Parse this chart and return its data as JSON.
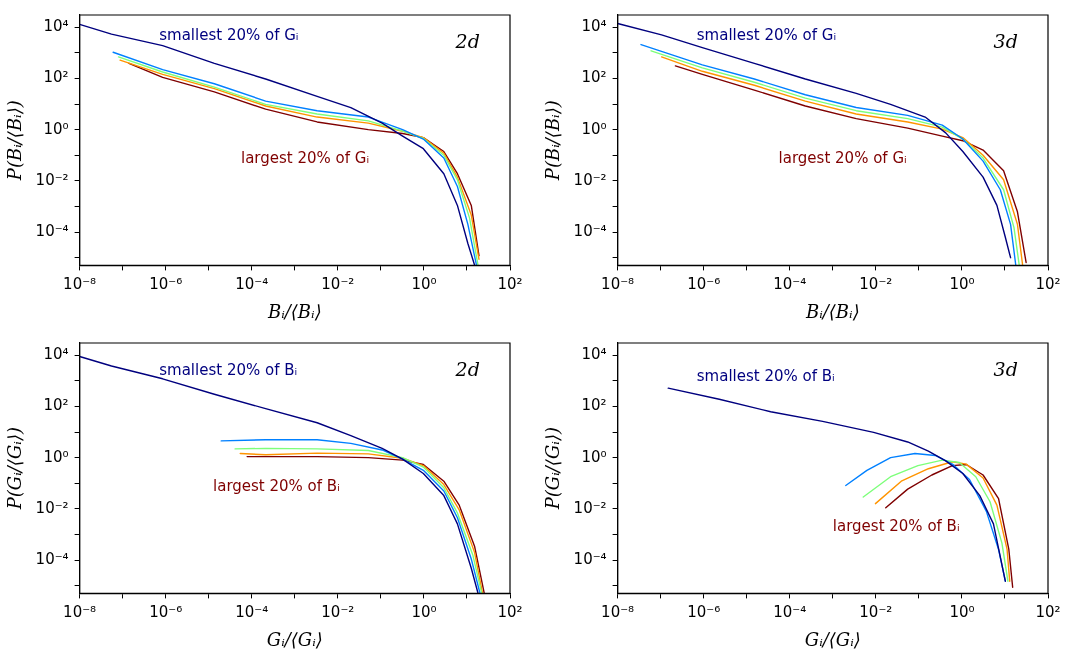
{
  "chart_data": [
    {
      "type": "line",
      "xlabel": "Bᵢ/⟨Bᵢ⟩",
      "ylabel": "P(Bᵢ/⟨Bᵢ⟩)",
      "log": "xy",
      "marker": "none",
      "annotations": [
        "2d"
      ],
      "xlim": [
        1e-08,
        100
      ],
      "ylim": [
        5e-06,
        30000
      ],
      "xticks": [
        {
          "value": 1e-08,
          "label": "10⁻⁸"
        },
        {
          "value": 1e-07,
          "label": null
        },
        {
          "value": 1e-06,
          "label": "10⁻⁶"
        },
        {
          "value": 1e-05,
          "label": null
        },
        {
          "value": 0.0001,
          "label": "10⁻⁴"
        },
        {
          "value": 0.001,
          "label": null
        },
        {
          "value": 0.01,
          "label": "10⁻²"
        },
        {
          "value": 0.1,
          "label": null
        },
        {
          "value": 1,
          "label": "10⁰"
        },
        {
          "value": 10,
          "label": null
        },
        {
          "value": 100,
          "label": "10²"
        }
      ],
      "yticks": [
        {
          "value": 1e-05,
          "label": null
        },
        {
          "value": 0.0001,
          "label": "10⁻⁴"
        },
        {
          "value": 0.001,
          "label": null
        },
        {
          "value": 0.01,
          "label": "10⁻²"
        },
        {
          "value": 0.1,
          "label": null
        },
        {
          "value": 1,
          "label": "10⁰"
        },
        {
          "value": 10,
          "label": null
        },
        {
          "value": 100,
          "label": "10²"
        },
        {
          "value": 1000,
          "label": null
        },
        {
          "value": 10000,
          "label": "10⁴"
        }
      ],
      "series": [
        {
          "name": "smallest 20% of Gᵢ",
          "color": "#00007f",
          "x": [
            1e-08,
            5.5e-08,
            8.5e-07,
            1.35e-05,
            0.00021,
            0.0033,
            0.02,
            0.107,
            0.32,
            0.97,
            2.9,
            6,
            10.5,
            15
          ],
          "values": [
            13000,
            5400,
            1900,
            390,
            95,
            20,
            7.3,
            1.8,
            0.56,
            0.18,
            0.019,
            0.0011,
            3.6e-05,
            5.2e-06
          ]
        },
        {
          "color": "#0080ff",
          "x": [
            6e-08,
            8.5e-07,
            1.35e-05,
            0.00021,
            0.0033,
            0.051,
            0.32,
            0.97,
            2.9,
            6,
            10.5,
            16.6
          ],
          "values": [
            1050,
            220,
            62,
            13,
            5.5,
            3.1,
            1,
            0.43,
            0.078,
            0.006,
            0.0002,
            5.2e-06
          ]
        },
        {
          "color": "#7dff7a",
          "x": [
            8e-08,
            8.5e-07,
            1.35e-05,
            0.00021,
            0.0033,
            0.051,
            0.32,
            0.97,
            2.9,
            6,
            11.5,
            18
          ],
          "values": [
            690,
            178,
            46,
            9.7,
            4.1,
            2.2,
            0.87,
            0.45,
            0.1,
            0.011,
            0.00035,
            5.2e-06
          ]
        },
        {
          "color": "#ff9400",
          "x": [
            8.7e-08,
            8.5e-07,
            1.35e-05,
            0.00021,
            0.0033,
            0.051,
            0.32,
            0.97,
            2.9,
            6,
            12.6,
            19
          ],
          "values": [
            520,
            145,
            40,
            8.4,
            3.1,
            1.8,
            0.87,
            0.49,
            0.12,
            0.014,
            0.00046,
            8.7e-06
          ]
        },
        {
          "name": "largest 20% of Gᵢ",
          "color": "#7f0000",
          "x": [
            1.4e-07,
            8.5e-07,
            1.35e-05,
            0.00021,
            0.0033,
            0.051,
            0.32,
            0.97,
            2.9,
            6,
            12.6,
            19
          ],
          "values": [
            390,
            110,
            30,
            6.3,
            2,
            1,
            0.71,
            0.49,
            0.14,
            0.019,
            0.0011,
            1.2e-05
          ]
        }
      ]
    },
    {
      "type": "line",
      "xlabel": "Bᵢ/⟨Bᵢ⟩",
      "ylabel": "P(Bᵢ/⟨Bᵢ⟩)",
      "log": "xy",
      "marker": "none",
      "annotations": [
        "3d"
      ],
      "xlim": [
        1e-08,
        100
      ],
      "ylim": [
        5e-06,
        30000
      ],
      "xticks": [
        {
          "value": 1e-08,
          "label": "10⁻⁸"
        },
        {
          "value": 1e-07,
          "label": null
        },
        {
          "value": 1e-06,
          "label": "10⁻⁶"
        },
        {
          "value": 1e-05,
          "label": null
        },
        {
          "value": 0.0001,
          "label": "10⁻⁴"
        },
        {
          "value": 0.001,
          "label": null
        },
        {
          "value": 0.01,
          "label": "10⁻²"
        },
        {
          "value": 0.1,
          "label": null
        },
        {
          "value": 1,
          "label": "10⁰"
        },
        {
          "value": 10,
          "label": null
        },
        {
          "value": 100,
          "label": "10²"
        }
      ],
      "yticks": [
        {
          "value": 1e-05,
          "label": null
        },
        {
          "value": 0.0001,
          "label": "10⁻⁴"
        },
        {
          "value": 0.001,
          "label": null
        },
        {
          "value": 0.01,
          "label": "10⁻²"
        },
        {
          "value": 0.1,
          "label": null
        },
        {
          "value": 1,
          "label": "10⁰"
        },
        {
          "value": 10,
          "label": null
        },
        {
          "value": 100,
          "label": "10²"
        },
        {
          "value": 1000,
          "label": null
        },
        {
          "value": 10000,
          "label": "10⁴"
        }
      ],
      "series": [
        {
          "name": "smallest 20% of Gᵢ",
          "color": "#00007f",
          "x": [
            1e-08,
            1.05e-07,
            9.3e-07,
            1.5e-05,
            0.00023,
            0.0035,
            0.022,
            0.14,
            0.42,
            1.05,
            3.1,
            6.5,
            10.2,
            13.5
          ],
          "values": [
            14000,
            5000,
            1600,
            390,
            95,
            26,
            9.7,
            3.1,
            0.75,
            0.14,
            0.014,
            0.0011,
            6.3e-05,
            1e-05
          ]
        },
        {
          "color": "#0080ff",
          "x": [
            3.5e-08,
            9.3e-07,
            1.5e-05,
            0.00023,
            0.0035,
            0.055,
            0.35,
            1.05,
            3.1,
            7.8,
            13.5,
            17.8
          ],
          "values": [
            2100,
            340,
            95,
            23,
            7.3,
            3.6,
            1.5,
            0.43,
            0.059,
            0.0045,
            0.0002,
            5.2e-06
          ]
        },
        {
          "color": "#7dff7a",
          "x": [
            6e-08,
            9.3e-07,
            1.5e-05,
            0.00023,
            0.0035,
            0.055,
            0.35,
            1.05,
            3.1,
            9.3,
            16.2,
            21.4
          ],
          "values": [
            1200,
            260,
            71,
            17,
            5.5,
            2.7,
            1.26,
            0.43,
            0.078,
            0.0045,
            0.00015,
            5.2e-06
          ]
        },
        {
          "color": "#ff9400",
          "x": [
            1.05e-07,
            9.3e-07,
            1.5e-05,
            0.00023,
            0.0035,
            0.055,
            0.35,
            1.05,
            3.1,
            9.3,
            19.5,
            25.7
          ],
          "values": [
            690,
            190,
            54,
            13,
            4.1,
            2,
            1.05,
            0.49,
            0.1,
            0.011,
            0.0002,
            5.2e-06
          ]
        },
        {
          "name": "largest 20% of Gᵢ",
          "color": "#7f0000",
          "x": [
            2.2e-07,
            9.3e-07,
            1.5e-05,
            0.00023,
            0.0035,
            0.055,
            0.35,
            1.05,
            3.1,
            9.3,
            19.5,
            31
          ],
          "values": [
            310,
            145,
            35,
            8.4,
            2.7,
            1.15,
            0.56,
            0.37,
            0.16,
            0.025,
            0.00062,
            6.5e-06
          ]
        }
      ]
    },
    {
      "type": "line",
      "xlabel": "Gᵢ/⟨Gᵢ⟩",
      "ylabel": "P(Gᵢ/⟨Gᵢ⟩)",
      "log": "xy",
      "marker": "none",
      "annotations": [
        "2d"
      ],
      "xlim": [
        1e-08,
        100
      ],
      "ylim": [
        5e-06,
        30000
      ],
      "xticks": [
        {
          "value": 1e-08,
          "label": "10⁻⁸"
        },
        {
          "value": 1e-07,
          "label": null
        },
        {
          "value": 1e-06,
          "label": "10⁻⁶"
        },
        {
          "value": 1e-05,
          "label": null
        },
        {
          "value": 0.0001,
          "label": "10⁻⁴"
        },
        {
          "value": 0.001,
          "label": null
        },
        {
          "value": 0.01,
          "label": "10⁻²"
        },
        {
          "value": 0.1,
          "label": null
        },
        {
          "value": 1,
          "label": "10⁰"
        },
        {
          "value": 10,
          "label": null
        },
        {
          "value": 100,
          "label": "10²"
        }
      ],
      "yticks": [
        {
          "value": 1e-05,
          "label": null
        },
        {
          "value": 0.0001,
          "label": "10⁻⁴"
        },
        {
          "value": 0.001,
          "label": null
        },
        {
          "value": 0.01,
          "label": "10⁻²"
        },
        {
          "value": 0.1,
          "label": null
        },
        {
          "value": 1,
          "label": "10⁰"
        },
        {
          "value": 10,
          "label": null
        },
        {
          "value": 100,
          "label": "10²"
        },
        {
          "value": 1000,
          "label": null
        },
        {
          "value": 10000,
          "label": "10⁴"
        }
      ],
      "series": [
        {
          "name": "smallest 20% of Bᵢ",
          "color": "#00007f",
          "x": [
            1e-08,
            5.5e-08,
            8.5e-07,
            1.35e-05,
            0.00021,
            0.0033,
            0.02,
            0.107,
            0.32,
            0.97,
            2.9,
            6,
            12.6,
            18
          ],
          "values": [
            8900,
            3800,
            1200,
            300,
            82,
            23,
            7.3,
            2.3,
            0.87,
            0.24,
            0.033,
            0.0026,
            4.8e-05,
            5.2e-06
          ]
        },
        {
          "color": "#0080ff",
          "x": [
            1.95e-05,
            0.00021,
            0.0033,
            0.02,
            0.107,
            0.32,
            0.97,
            2.9,
            6,
            12.6,
            20
          ],
          "values": [
            4.5,
            5,
            5,
            3.6,
            2,
            0.87,
            0.32,
            0.05,
            0.0045,
            0.00011,
            5.2e-06
          ]
        },
        {
          "color": "#7dff7a",
          "x": [
            4.1e-05,
            0.00021,
            0.0033,
            0.051,
            0.32,
            0.97,
            2.9,
            6,
            13.8,
            21.9
          ],
          "values": [
            2.2,
            2.3,
            2.2,
            1.9,
            1,
            0.43,
            0.067,
            0.0069,
            0.00015,
            5.2e-06
          ]
        },
        {
          "color": "#ff9400",
          "x": [
            5.4e-05,
            0.00021,
            0.0033,
            0.051,
            0.32,
            0.97,
            2.9,
            6.6,
            15,
            22.9
          ],
          "values": [
            1.45,
            1.3,
            1.5,
            1.4,
            0.95,
            0.49,
            0.089,
            0.0092,
            0.0002,
            5.2e-06
          ]
        },
        {
          "name": "largest 20% of Bᵢ",
          "color": "#7f0000",
          "x": [
            7.8e-05,
            0.0033,
            0.051,
            0.32,
            0.97,
            2.9,
            6.6,
            15,
            25.1
          ],
          "values": [
            1.1,
            1.1,
            1,
            0.8,
            0.54,
            0.12,
            0.014,
            0.00035,
            5.2e-06
          ]
        }
      ]
    },
    {
      "type": "line",
      "xlabel": "Gᵢ/⟨Gᵢ⟩",
      "ylabel": "P(Gᵢ/⟨Gᵢ⟩)",
      "log": "xy",
      "marker": "none",
      "annotations": [
        "3d"
      ],
      "xlim": [
        1e-08,
        100
      ],
      "ylim": [
        5e-06,
        30000
      ],
      "xticks": [
        {
          "value": 1e-08,
          "label": "10⁻⁸"
        },
        {
          "value": 1e-07,
          "label": null
        },
        {
          "value": 1e-06,
          "label": "10⁻⁶"
        },
        {
          "value": 1e-05,
          "label": null
        },
        {
          "value": 0.0001,
          "label": "10⁻⁴"
        },
        {
          "value": 0.001,
          "label": null
        },
        {
          "value": 0.01,
          "label": "10⁻²"
        },
        {
          "value": 0.1,
          "label": null
        },
        {
          "value": 1,
          "label": "10⁰"
        },
        {
          "value": 10,
          "label": null
        },
        {
          "value": 100,
          "label": "10²"
        }
      ],
      "yticks": [
        {
          "value": 1e-05,
          "label": null
        },
        {
          "value": 0.0001,
          "label": "10⁻⁴"
        },
        {
          "value": 0.001,
          "label": null
        },
        {
          "value": 0.01,
          "label": "10⁻²"
        },
        {
          "value": 0.1,
          "label": null
        },
        {
          "value": 1,
          "label": "10⁰"
        },
        {
          "value": 10,
          "label": null
        },
        {
          "value": 100,
          "label": "10²"
        },
        {
          "value": 1000,
          "label": null
        },
        {
          "value": 10000,
          "label": "10⁴"
        }
      ],
      "series": [
        {
          "name": "smallest 20% of Bᵢ",
          "color": "#00007f",
          "x": [
            1.5e-07,
            2.3e-06,
            3.6e-05,
            0.00058,
            0.0089,
            0.055,
            0.166,
            0.42,
            1.05,
            2.6,
            5.4,
            10.2
          ],
          "values": [
            520,
            190,
            62,
            26,
            9.7,
            4.1,
            1.8,
            0.75,
            0.24,
            0.033,
            0.0026,
            1.5e-05
          ]
        },
        {
          "color": "#0080ff",
          "x": [
            0.002,
            0.0062,
            0.022,
            0.081,
            0.24,
            0.6,
            1.5,
            3.7,
            7.1,
            10.2
          ],
          "values": [
            0.082,
            0.32,
            1,
            1.45,
            1.22,
            0.56,
            0.14,
            0.008,
            0.00026,
            1.5e-05
          ]
        },
        {
          "color": "#7dff7a",
          "x": [
            0.0051,
            0.022,
            0.095,
            0.35,
            0.87,
            2.1,
            4.5,
            8.5,
            11.7
          ],
          "values": [
            0.029,
            0.18,
            0.49,
            0.8,
            0.65,
            0.18,
            0.019,
            0.00046,
            1.5e-05
          ]
        },
        {
          "color": "#ff9400",
          "x": [
            0.0098,
            0.039,
            0.166,
            0.6,
            1.26,
            3.1,
            6.5,
            11.2,
            12.9
          ],
          "values": [
            0.016,
            0.12,
            0.37,
            0.69,
            0.56,
            0.16,
            0.014,
            0.00026,
            1.5e-05
          ]
        },
        {
          "name": "largest 20% of Bᵢ",
          "color": "#7f0000",
          "x": [
            0.017,
            0.055,
            0.2,
            0.6,
            1.26,
            3.1,
            7.1,
            12.3,
            15.1
          ],
          "values": [
            0.011,
            0.059,
            0.21,
            0.49,
            0.54,
            0.21,
            0.025,
            0.00026,
            8.7e-06
          ]
        }
      ]
    }
  ]
}
